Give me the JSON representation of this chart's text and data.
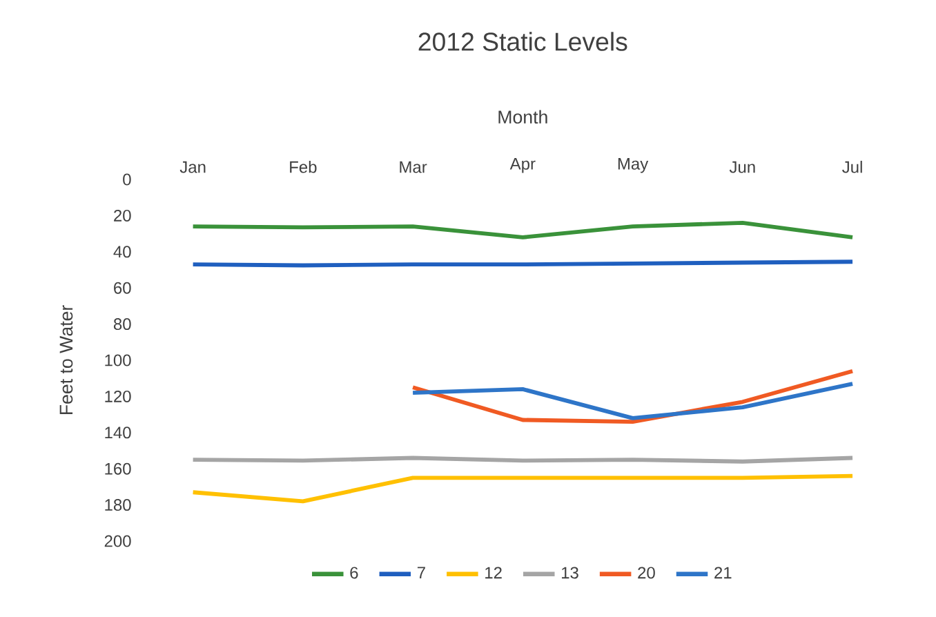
{
  "chart_data": {
    "type": "line",
    "title": "2012 Static Levels",
    "xlabel": "Month",
    "ylabel": "Feet to Water",
    "categories": [
      "Jan",
      "Feb",
      "Mar",
      "Apr",
      "May",
      "Jun",
      "Jul"
    ],
    "ylim": [
      200,
      0
    ],
    "yticks": [
      0,
      20,
      40,
      60,
      80,
      100,
      120,
      140,
      160,
      180,
      200
    ],
    "legend": "bottom",
    "series": [
      {
        "name": "6",
        "color": "#3a923a",
        "values": [
          26,
          26.5,
          26,
          32,
          26,
          24,
          32
        ]
      },
      {
        "name": "7",
        "color": "#1f5fbf",
        "values": [
          47,
          47.5,
          47,
          47,
          46.5,
          46,
          45.5
        ]
      },
      {
        "name": "12",
        "color": "#ffc000",
        "values": [
          173,
          178,
          165,
          165,
          165,
          165,
          164
        ]
      },
      {
        "name": "13",
        "color": "#a5a5a5",
        "values": [
          155,
          155.5,
          154,
          155.5,
          155,
          156,
          154
        ]
      },
      {
        "name": "20",
        "color": "#f05a23",
        "values": [
          null,
          null,
          115,
          133,
          134,
          123,
          106
        ]
      },
      {
        "name": "21",
        "color": "#2e75c8",
        "values": [
          null,
          null,
          118,
          116,
          132,
          126,
          113
        ]
      }
    ]
  }
}
